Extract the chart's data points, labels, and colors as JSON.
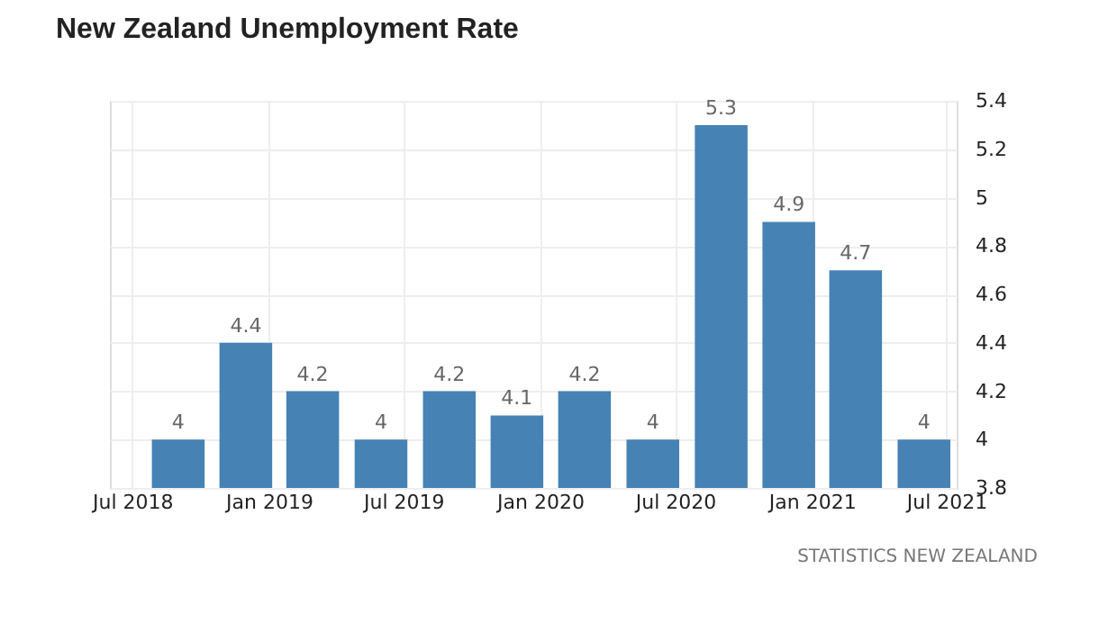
{
  "chart_data": {
    "type": "bar",
    "title": "New Zealand Unemployment Rate",
    "x": [
      "2018-09",
      "2018-12",
      "2019-03",
      "2019-06",
      "2019-09",
      "2019-12",
      "2020-03",
      "2020-06",
      "2020-09",
      "2020-12",
      "2021-03",
      "2021-06"
    ],
    "values": [
      4,
      4.4,
      4.2,
      4,
      4.2,
      4.1,
      4.2,
      4,
      5.3,
      4.9,
      4.7,
      4
    ],
    "color": "#4682b4",
    "data_labels": true,
    "xlim": [
      "2018-06",
      "2021-07-15"
    ],
    "xticks": [
      {
        "value": "2018-07",
        "label": "Jul 2018"
      },
      {
        "value": "2019-01",
        "label": "Jan 2019"
      },
      {
        "value": "2019-07",
        "label": "Jul 2019"
      },
      {
        "value": "2020-01",
        "label": "Jan 2020"
      },
      {
        "value": "2020-07",
        "label": "Jul 2020"
      },
      {
        "value": "2021-01",
        "label": "Jan 2021"
      },
      {
        "value": "2021-07",
        "label": "Jul 2021"
      }
    ],
    "ylim": [
      3.8,
      5.4
    ],
    "yticks": [
      3.8,
      4,
      4.2,
      4.4,
      4.6,
      4.8,
      5,
      5.2,
      5.4
    ],
    "grid": true,
    "annotations": [
      "STATISTICS NEW ZEALAND"
    ]
  }
}
